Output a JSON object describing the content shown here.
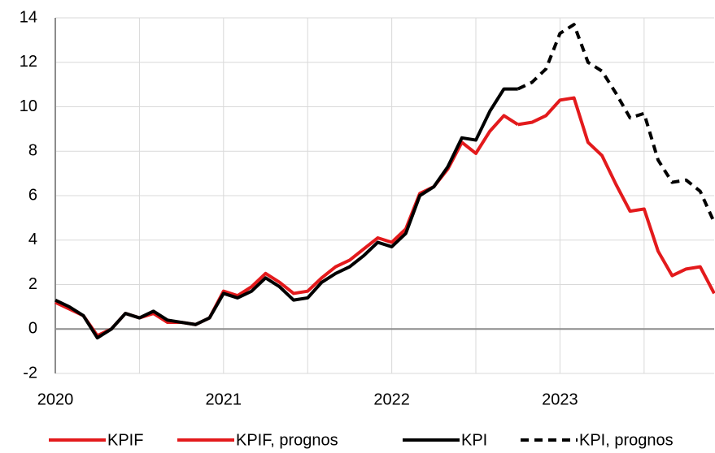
{
  "chart_data": {
    "type": "line",
    "categories": [
      "2020",
      null,
      null,
      null,
      null,
      null,
      null,
      null,
      null,
      null,
      null,
      null,
      "2021",
      null,
      null,
      null,
      null,
      null,
      null,
      null,
      null,
      null,
      null,
      null,
      "2022",
      null,
      null,
      null,
      null,
      null,
      null,
      null,
      null,
      null,
      null,
      null,
      "2023",
      null,
      null,
      null,
      null,
      null,
      null,
      null,
      null,
      null,
      null,
      null
    ],
    "series": [
      {
        "name": "KPIF",
        "color": "#e31a1c",
        "dashed": false,
        "values": [
          1.2,
          0.9,
          0.6,
          -0.3,
          0.0,
          0.7,
          0.5,
          0.7,
          0.3,
          0.3,
          0.2,
          0.5,
          1.7,
          1.5,
          1.9,
          2.5,
          2.1,
          1.6,
          1.7,
          2.3,
          2.8,
          3.1,
          3.6,
          4.1,
          3.9,
          4.5,
          6.1,
          6.4,
          7.2,
          8.4,
          7.9,
          8.9,
          9.6,
          9.2,
          null,
          null,
          null,
          null,
          null,
          null,
          null,
          null,
          null,
          null,
          null,
          null,
          null,
          null
        ]
      },
      {
        "name": "KPIF, prognos",
        "color": "#e31a1c",
        "dashed": false,
        "values": [
          null,
          null,
          null,
          null,
          null,
          null,
          null,
          null,
          null,
          null,
          null,
          null,
          null,
          null,
          null,
          null,
          null,
          null,
          null,
          null,
          null,
          null,
          null,
          null,
          null,
          null,
          null,
          null,
          null,
          null,
          null,
          null,
          null,
          9.2,
          9.3,
          9.6,
          10.3,
          10.4,
          8.4,
          7.8,
          6.5,
          5.3,
          5.4,
          3.5,
          2.4,
          2.7,
          2.8,
          1.6
        ]
      },
      {
        "name": "KPI",
        "color": "#000000",
        "dashed": false,
        "values": [
          1.3,
          1.0,
          0.6,
          -0.4,
          0.0,
          0.7,
          0.5,
          0.8,
          0.4,
          0.3,
          0.2,
          0.5,
          1.6,
          1.4,
          1.7,
          2.3,
          1.9,
          1.3,
          1.4,
          2.1,
          2.5,
          2.8,
          3.3,
          3.9,
          3.7,
          4.3,
          6.0,
          6.4,
          7.3,
          8.6,
          8.5,
          9.8,
          10.8,
          10.8,
          null,
          null,
          null,
          null,
          null,
          null,
          null,
          null,
          null,
          null,
          null,
          null,
          null,
          null
        ]
      },
      {
        "name": "KPI, prognos",
        "color": "#000000",
        "dashed": true,
        "values": [
          null,
          null,
          null,
          null,
          null,
          null,
          null,
          null,
          null,
          null,
          null,
          null,
          null,
          null,
          null,
          null,
          null,
          null,
          null,
          null,
          null,
          null,
          null,
          null,
          null,
          null,
          null,
          null,
          null,
          null,
          null,
          null,
          null,
          10.8,
          11.1,
          11.7,
          13.3,
          13.7,
          12.0,
          11.6,
          10.6,
          9.5,
          9.7,
          7.6,
          6.6,
          6.7,
          6.2,
          4.8
        ]
      }
    ],
    "ylim": [
      -2,
      14
    ],
    "yticks": [
      -2,
      0,
      2,
      4,
      6,
      8,
      10,
      12,
      14
    ],
    "grid": true,
    "legend": "bottom"
  }
}
